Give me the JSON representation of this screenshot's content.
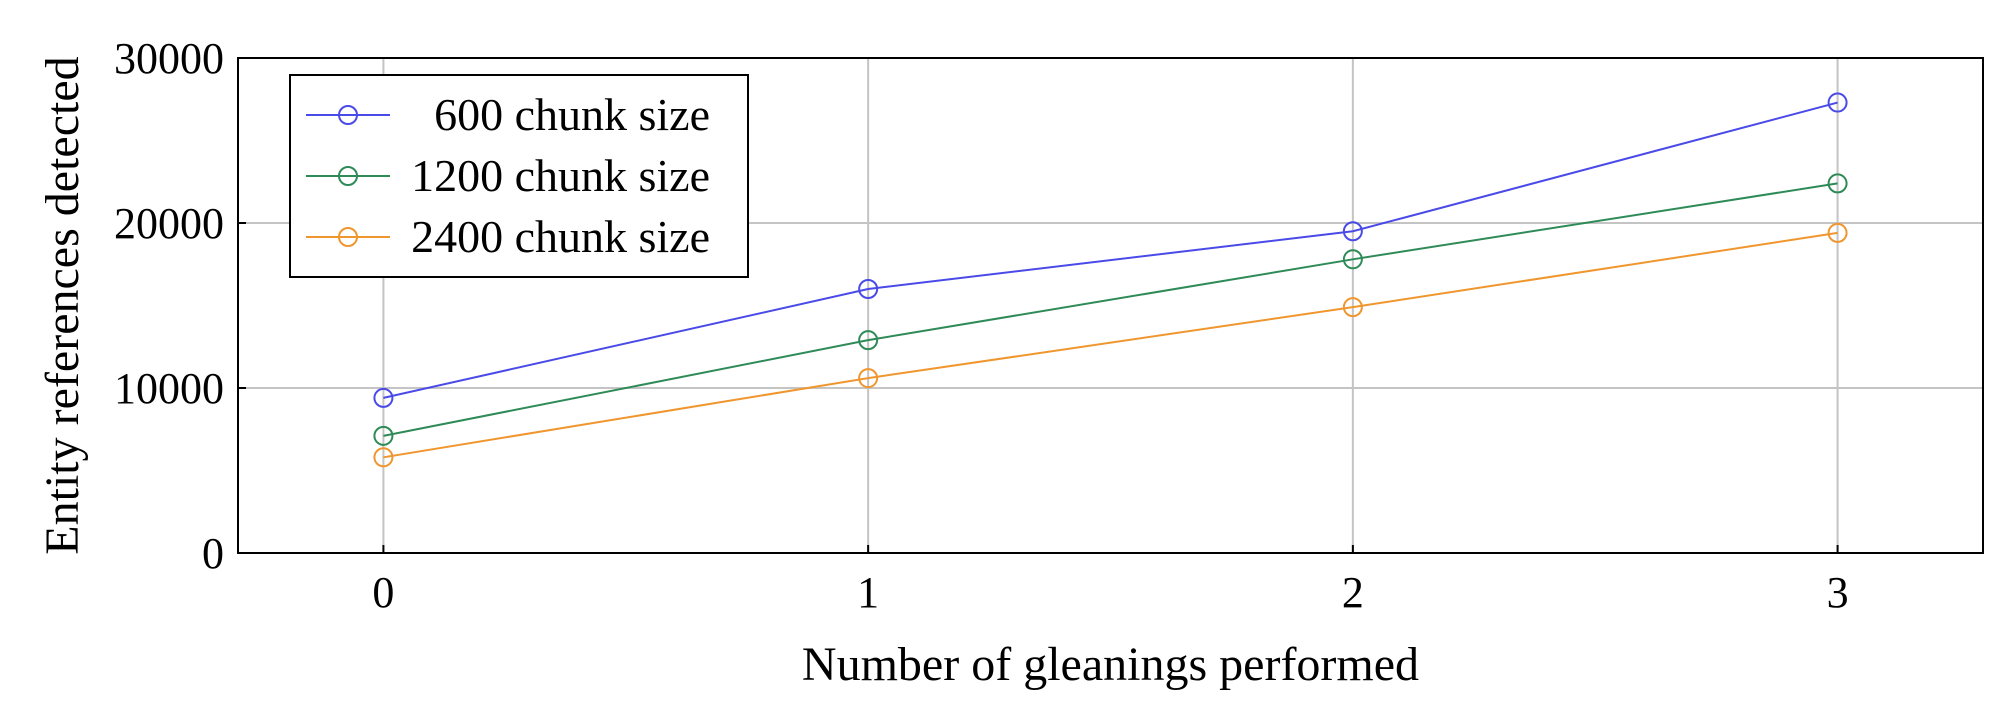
{
  "chart_data": {
    "type": "line",
    "title": "",
    "xlabel": "Number of gleanings performed",
    "ylabel": "Entity references detected",
    "x": [
      0,
      1,
      2,
      3
    ],
    "xlim": [
      -0.3,
      3.3
    ],
    "ylim": [
      0,
      30000
    ],
    "xticks": [
      "0",
      "1",
      "2",
      "3"
    ],
    "yticks": [
      "0",
      "10000",
      "20000",
      "30000"
    ],
    "grid": true,
    "legend_position": "top-left",
    "marker": "open-circle",
    "series": [
      {
        "name": "600 chunk size",
        "color": "#4a4ae8",
        "values": [
          9400,
          16000,
          19500,
          27300
        ]
      },
      {
        "name": "1200 chunk size",
        "color": "#2e8b57",
        "values": [
          7100,
          12900,
          17800,
          22400
        ]
      },
      {
        "name": "2400 chunk size",
        "color": "#f0962e",
        "values": [
          5800,
          10600,
          14900,
          19400
        ]
      }
    ]
  }
}
